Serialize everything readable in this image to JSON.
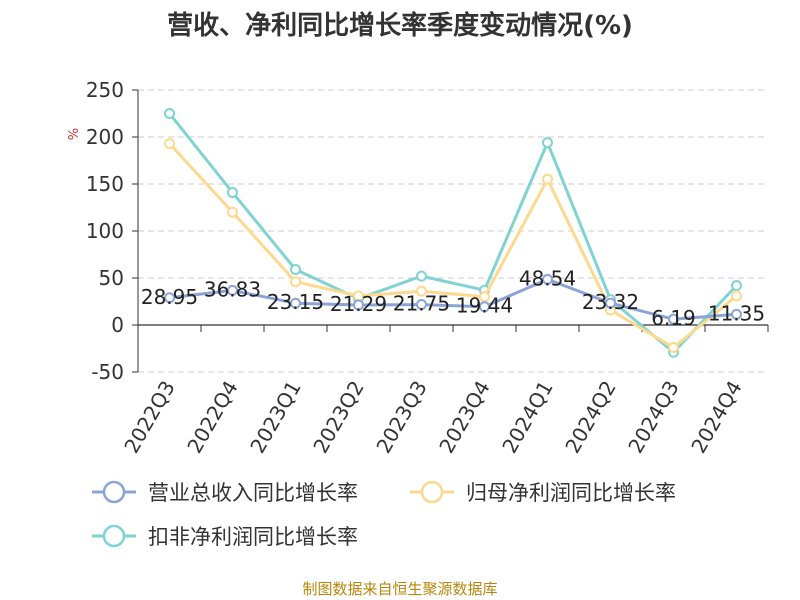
{
  "chart_data": {
    "type": "line",
    "title": "营收、净利同比增长率季度变动情况(%)",
    "unit": "%",
    "source": "制图数据来自恒生聚源数据库",
    "categories": [
      "2022Q3",
      "2022Q4",
      "2023Q1",
      "2023Q2",
      "2023Q3",
      "2023Q4",
      "2024Q1",
      "2024Q2",
      "2024Q3",
      "2024Q4"
    ],
    "ylim": [
      -50,
      250
    ],
    "yticks": [
      -50,
      0,
      50,
      100,
      150,
      200,
      250
    ],
    "grid": true,
    "legend_position": "bottom",
    "series": [
      {
        "name": "营业总收入同比增长率",
        "color": "#8aa4d6",
        "values": [
          28.95,
          36.83,
          23.15,
          21.29,
          21.75,
          19.44,
          48.54,
          23.32,
          6.19,
          11.35
        ],
        "labels": [
          "28.95",
          "36.83",
          "23.15",
          "21.29",
          "21.75",
          "19.44",
          "48.54",
          "23.32",
          "6.19",
          "11.35"
        ]
      },
      {
        "name": "归母净利润同比增长率",
        "color": "#fcd98e",
        "values": [
          193,
          120,
          46,
          31,
          36,
          30,
          155,
          16,
          -24,
          31
        ]
      },
      {
        "name": "扣非净利润同比增长率",
        "color": "#7fd3d3",
        "values": [
          225,
          141,
          59,
          28,
          52,
          37,
          194,
          27,
          -29,
          42
        ]
      }
    ]
  }
}
